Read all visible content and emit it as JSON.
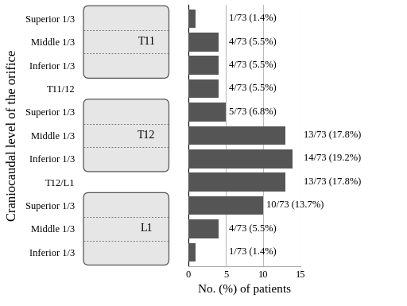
{
  "chart_data": {
    "type": "bar",
    "orientation": "horizontal",
    "categories": [
      "Superior 1/3",
      "Middle 1/3",
      "Inferior 1/3",
      "T11/12",
      "Superior 1/3",
      "Middle 1/3",
      "Inferior 1/3",
      "T12/L1",
      "Superior 1/3",
      "Middle 1/3",
      "Inferior 1/3"
    ],
    "values": [
      1,
      4,
      4,
      4,
      5,
      13,
      14,
      13,
      10,
      4,
      1
    ],
    "value_labels": [
      "1/73 (1.4%)",
      "4/73 (5.5%)",
      "4/73 (5.5%)",
      "4/73 (5.5%)",
      "5/73 (6.8%)",
      "13/73 (17.8%)",
      "14/73 (19.2%)",
      "13/73 (17.8%)",
      "10/73 (13.7%)",
      "4/73 (5.5%)",
      "1/73 (1.4%)"
    ],
    "data_labels": true,
    "annotations": [
      "T11",
      "T12",
      "L1"
    ],
    "x_label": "No. (%) of patients",
    "y_label": "Craniocaudal level of the orifice",
    "xlim": [
      0,
      15
    ],
    "xticks": [
      0,
      5,
      10,
      15
    ],
    "grid": true,
    "color": "#555555"
  }
}
